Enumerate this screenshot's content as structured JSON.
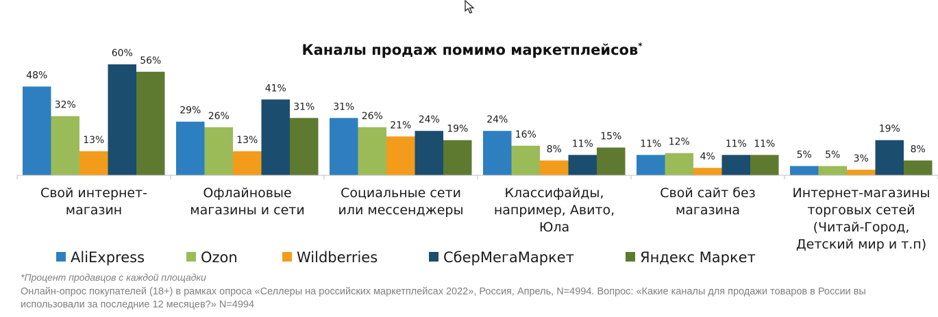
{
  "chart_data": {
    "type": "bar",
    "title": "Каналы продаж помимо маркетплейсов",
    "title_mark": "*",
    "categories": [
      [
        "Свой интернет-",
        "магазин"
      ],
      [
        "Офлайновые",
        "магазины и сети"
      ],
      [
        "Социальные сети",
        "или мессенджеры"
      ],
      [
        "Классифайды,",
        "например, Авито,",
        "Юла"
      ],
      [
        "Свой сайт без",
        "магазина"
      ],
      [
        "Интернет-магазины",
        "торговых сетей",
        "(Читай-Город,",
        "Детский мир и т.п)"
      ]
    ],
    "series": [
      {
        "name": "AliExpress",
        "color": "#2e7fbf",
        "values": [
          48,
          29,
          31,
          24,
          11,
          5
        ]
      },
      {
        "name": "Ozon",
        "color": "#9bbb59",
        "values": [
          32,
          26,
          26,
          16,
          12,
          5
        ]
      },
      {
        "name": "Wildberries",
        "color": "#f39c1c",
        "values": [
          13,
          13,
          21,
          8,
          4,
          3
        ]
      },
      {
        "name": "СберМегаМаркет",
        "color": "#1b4d6e",
        "values": [
          60,
          41,
          24,
          11,
          11,
          19
        ]
      },
      {
        "name": "Яндекс Маркет",
        "color": "#5e7a31",
        "values": [
          56,
          31,
          19,
          15,
          11,
          8
        ]
      }
    ],
    "value_suffix": "%",
    "ylim": [
      0,
      60
    ],
    "legend": "bottom",
    "grid": false
  },
  "footnote": "*Процент продавцов с каждой площадки",
  "source": "Онлайн-опрос покупателей (18+) в рамках опроса «Селлеры на российских маркетплейсах 2022», Россия, Апрель, N=4994. Вопрос: «Какие каналы для продажи товаров в России вы использовали за последние 12 месяцев?» N=4994"
}
